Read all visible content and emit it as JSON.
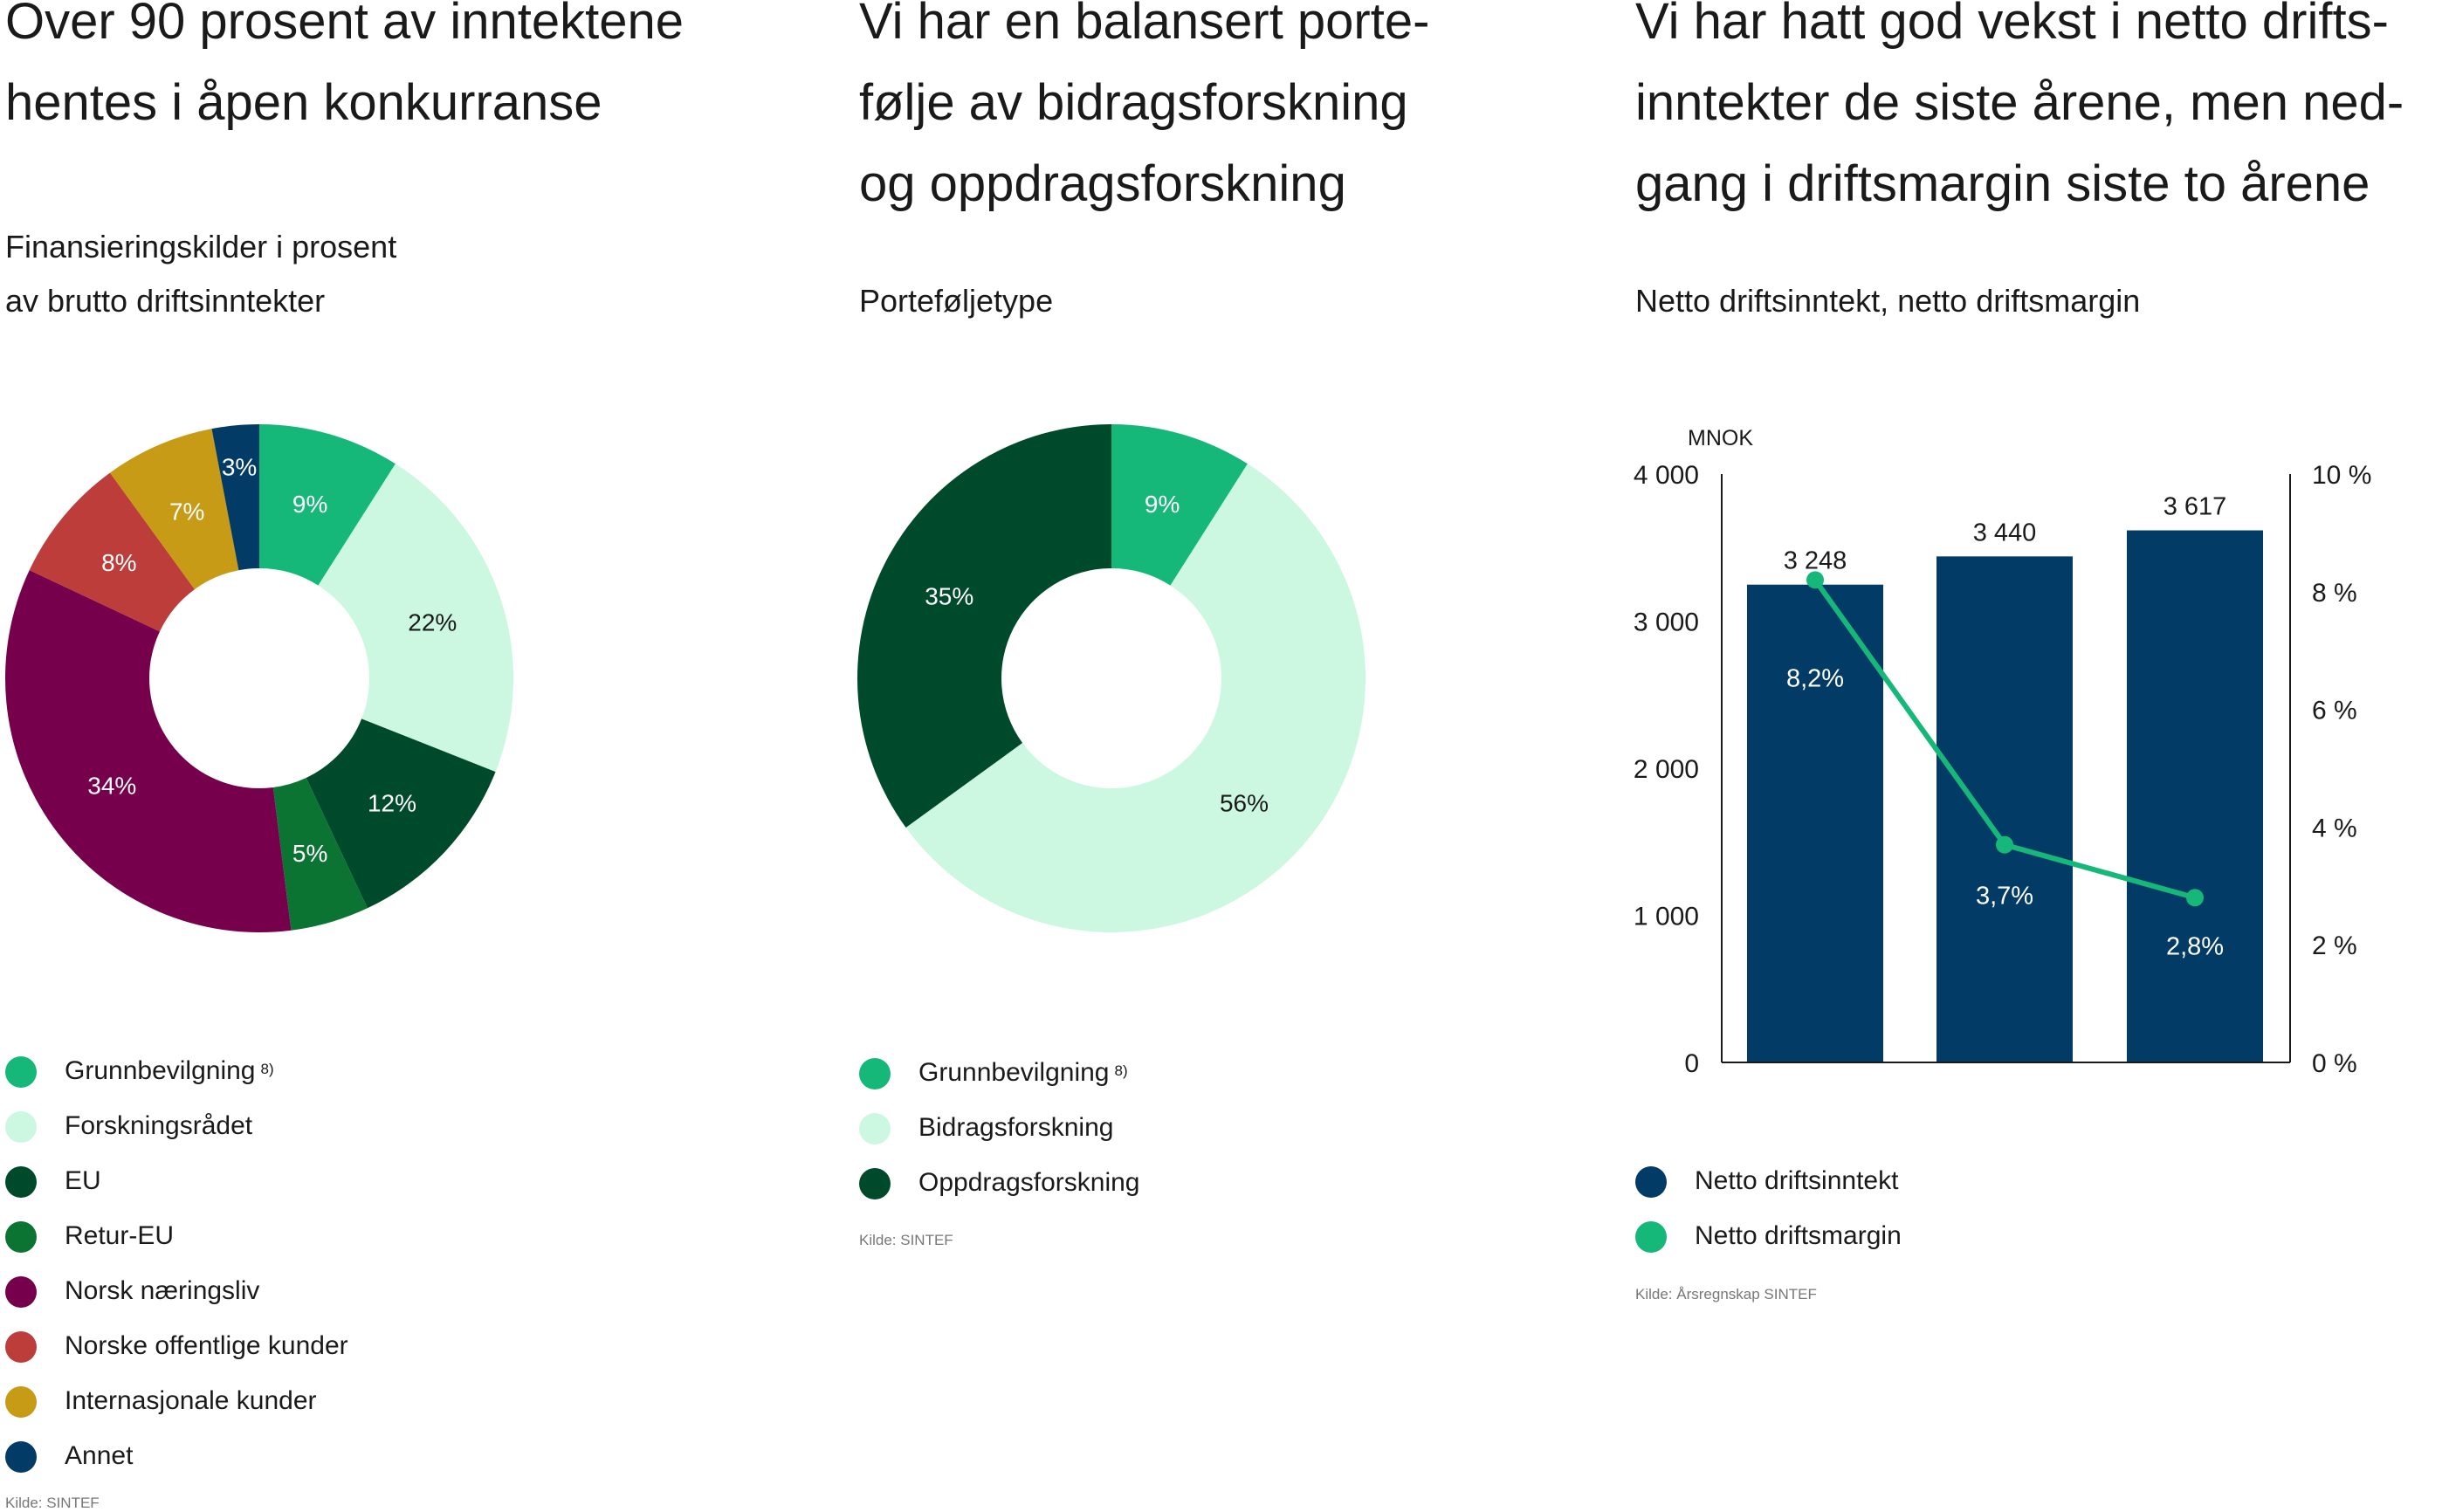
{
  "panel1": {
    "title_lines": [
      "Over 90 prosent av inntektene",
      "hentes i åpen konkurranse"
    ],
    "subtitle_lines": [
      "Finansieringskilder i prosent",
      "av brutto driftsinntekter"
    ],
    "footnote": "8)",
    "source": "Kilde: SINTEF"
  },
  "panel2": {
    "title_lines": [
      "Vi har en balansert porte-",
      "følje av bidragsforskning",
      "og oppdragsforskning"
    ],
    "subtitle_lines": [
      "Porteføljetype"
    ],
    "footnote": "8)",
    "source": "Kilde: SINTEF"
  },
  "panel3": {
    "title_lines": [
      "Vi har hatt god vekst i netto drifts-",
      "inntekter de siste årene, men ned-",
      "gang i driftsmargin siste to årene"
    ],
    "subtitle_lines": [
      "Netto driftsinntekt, netto driftsmargin"
    ],
    "source": "Kilde: Årsregnskap SINTEF"
  },
  "chart_data": [
    {
      "type": "pie",
      "donut": true,
      "title": "Finansieringskilder i prosent av brutto driftsinntekter",
      "categories": [
        "Grunnbevilgning",
        "Forskningsrådet",
        "EU",
        "Retur-EU",
        "Norsk næringsliv",
        "Norske offentlige kunder",
        "Internasjonale kunder",
        "Annet"
      ],
      "values": [
        9,
        22,
        12,
        5,
        34,
        8,
        7,
        3
      ],
      "labels": [
        "9%",
        "22%",
        "12%",
        "5%",
        "34%",
        "8%",
        "7%",
        "3%"
      ],
      "colors": [
        "#16b87a",
        "#ccf7e1",
        "#004a2c",
        "#0b7432",
        "#76004b",
        "#bc3d3a",
        "#c89b16",
        "#013b66"
      ],
      "label_colors": [
        "#ffffff",
        "#1a1a1a",
        "#ffffff",
        "#ffffff",
        "#ffffff",
        "#ffffff",
        "#ffffff",
        "#ffffff"
      ],
      "legend_placement": "bottom"
    },
    {
      "type": "pie",
      "donut": true,
      "title": "Porteføljetype",
      "categories": [
        "Grunnbevilgning",
        "Bidragsforskning",
        "Oppdragsforskning"
      ],
      "values": [
        9,
        56,
        35
      ],
      "labels": [
        "9%",
        "56%",
        "35%"
      ],
      "colors": [
        "#16b87a",
        "#ccf7e1",
        "#004a2c"
      ],
      "label_colors": [
        "#ffffff",
        "#1a1a1a",
        "#ffffff"
      ],
      "legend_placement": "bottom"
    },
    {
      "type": "bar",
      "title": "Netto driftsinntekt, netto driftsmargin",
      "ylabel": "MNOK",
      "ylim": [
        0,
        4000
      ],
      "yticks": [
        0,
        1000,
        2000,
        3000,
        4000
      ],
      "ytick_labels": [
        "0",
        "1 000",
        "2 000",
        "3 000",
        "4 000"
      ],
      "y2lim": [
        0,
        10
      ],
      "y2ticks": [
        0,
        2,
        4,
        6,
        8,
        10
      ],
      "y2tick_labels": [
        "0 %",
        "2 %",
        "4 %",
        "6 %",
        "8 %",
        "10 %"
      ],
      "series": [
        {
          "name": "Netto driftsinntekt",
          "kind": "bar",
          "axis": "left",
          "values": [
            3248,
            3440,
            3617
          ],
          "labels": [
            "3 248",
            "3 440",
            "3 617"
          ],
          "color": "#013b66"
        },
        {
          "name": "Netto driftsmargin",
          "kind": "line",
          "axis": "right",
          "values": [
            8.2,
            3.7,
            2.8
          ],
          "labels": [
            "8,2%",
            "3,7%",
            "2,8%"
          ],
          "color": "#16b87a"
        }
      ],
      "legend_placement": "bottom"
    }
  ]
}
